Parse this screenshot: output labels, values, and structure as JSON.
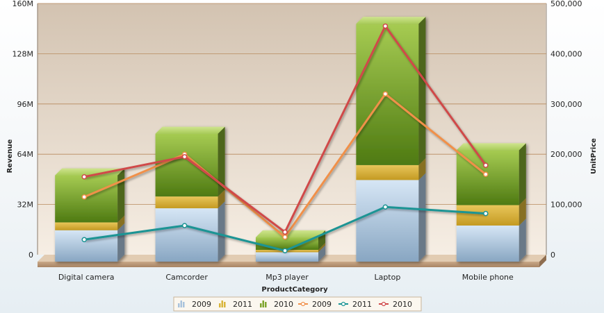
{
  "chart_data": {
    "type": "bar",
    "xlabel": "ProductCategory",
    "ylabel": "Revenue",
    "y2label": "UnitPrice",
    "ylim": [
      0,
      160000000
    ],
    "y2lim": [
      0,
      500000
    ],
    "yticks": [
      "0",
      "32M",
      "64M",
      "96M",
      "128M",
      "160M"
    ],
    "y2ticks": [
      "0",
      "100,000",
      "200,000",
      "300,000",
      "400,000",
      "500,000"
    ],
    "categories": [
      "Digital camera",
      "Camcorder",
      "Mp3 player",
      "Laptop",
      "Mobile phone"
    ],
    "bar_series": [
      {
        "name": "2009",
        "color": "#a9c3dc",
        "values": [
          20000000,
          34000000,
          6000000,
          52000000,
          23000000
        ]
      },
      {
        "name": "2011",
        "color": "#d9b53a",
        "values": [
          5000000,
          7500000,
          1500000,
          9500000,
          13000000
        ]
      },
      {
        "name": "2010",
        "color": "#7ea52e",
        "values": [
          30000000,
          40000000,
          8000000,
          90000000,
          35000000
        ]
      }
    ],
    "line_series": [
      {
        "name": "2009",
        "color": "#f0904a",
        "values": [
          115000,
          200000,
          35000,
          320000,
          160000
        ]
      },
      {
        "name": "2011",
        "color": "#1a9494",
        "values": [
          30000,
          58000,
          8000,
          95000,
          82000
        ]
      },
      {
        "name": "2010",
        "color": "#d04848",
        "values": [
          155000,
          195000,
          45000,
          455000,
          178000
        ]
      }
    ],
    "grid": true,
    "legend_position": "bottom"
  }
}
